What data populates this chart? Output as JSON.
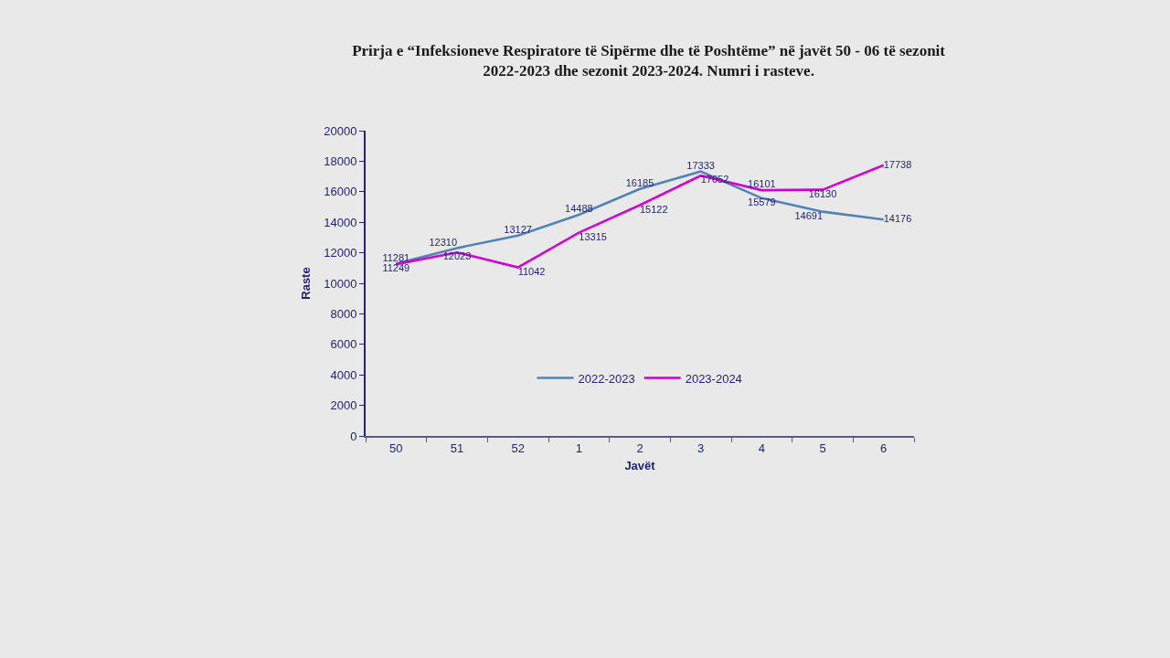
{
  "chart_data": {
    "type": "line",
    "title": "Prirja e “Infeksioneve Respiratore të Sipërme dhe të Poshtëme” në javët 50 - 06 të sezonit 2022-2023 dhe sezonit 2023-2024. Numri i rasteve.",
    "xlabel": "Javët",
    "ylabel": "Raste",
    "categories": [
      "50",
      "51",
      "52",
      "1",
      "2",
      "3",
      "4",
      "5",
      "6"
    ],
    "series": [
      {
        "name": "2022-2023",
        "color": "#5283b5",
        "values": [
          11281,
          12310,
          13127,
          14488,
          16185,
          17333,
          15579,
          14691,
          14176
        ]
      },
      {
        "name": "2023-2024",
        "color": "#cc00cc",
        "values": [
          11249,
          12023,
          11042,
          13315,
          15122,
          17052,
          16101,
          16130,
          17738
        ]
      }
    ],
    "ylim": [
      0,
      20000
    ],
    "yticks": [
      0,
      2000,
      4000,
      6000,
      8000,
      10000,
      12000,
      14000,
      16000,
      18000,
      20000
    ],
    "data_labels": true,
    "legend": "bottom",
    "grid": false,
    "marker": "none",
    "line_style": "solid"
  }
}
